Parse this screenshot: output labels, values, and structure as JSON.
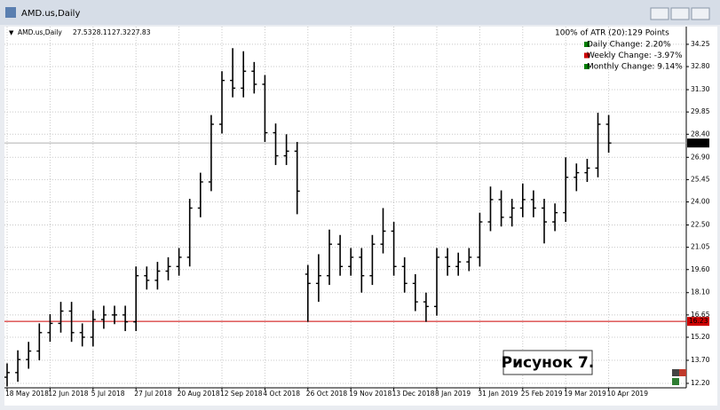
{
  "chart_data": {
    "type": "ohlc",
    "title": "AMD.us,Daily",
    "header_values": [
      27.53,
      28.11,
      27.32,
      27.83
    ],
    "categories": [
      "18 May 2018",
      null,
      null,
      null,
      "12 Jun 2018",
      null,
      null,
      null,
      "5 Jul 2018",
      null,
      null,
      null,
      "27 Jul 2018",
      null,
      null,
      null,
      "20 Aug 2018",
      null,
      null,
      null,
      "12 Sep 2018",
      null,
      null,
      null,
      "4 Oct 2018",
      null,
      null,
      null,
      "26 Oct 2018",
      null,
      null,
      null,
      "19 Nov 2018",
      null,
      null,
      null,
      "13 Dec 2018",
      null,
      null,
      null,
      "8 Jan 2019",
      null,
      null,
      null,
      "31 Jan 2019",
      null,
      null,
      null,
      "25 Feb 2019",
      null,
      null,
      null,
      "19 Mar 2019",
      null,
      null,
      null,
      "10 Apr 2019"
    ],
    "open": [
      12.6,
      12.9,
      13.75,
      14.3,
      15.5,
      16.1,
      16.9,
      15.5,
      15.2,
      16.35,
      16.65,
      16.65,
      16.2,
      19.2,
      18.9,
      19.5,
      19.8,
      20.4,
      23.6,
      25.3,
      29.05,
      31.9,
      31.4,
      32.5,
      31.65,
      28.5,
      27.0,
      27.3,
      19.3,
      18.7,
      19.2,
      21.25,
      19.8,
      20.4,
      19.2,
      21.25,
      22.1,
      19.8,
      18.7,
      17.5,
      17.2,
      20.4,
      19.8,
      20.1,
      20.4,
      22.7,
      24.15,
      23.0,
      23.6,
      24.15,
      23.6,
      22.7,
      23.3,
      25.6,
      25.9,
      26.2,
      29.05
    ],
    "high": [
      13.5,
      14.35,
      14.9,
      16.1,
      16.7,
      17.5,
      17.5,
      16.1,
      16.95,
      17.25,
      17.25,
      17.25,
      19.8,
      19.8,
      20.1,
      20.4,
      21.0,
      24.2,
      25.9,
      29.65,
      32.5,
      34.0,
      33.8,
      33.1,
      32.25,
      29.1,
      28.4,
      27.9,
      19.9,
      20.6,
      22.2,
      21.85,
      21.0,
      21.0,
      21.85,
      23.6,
      22.7,
      20.4,
      19.3,
      18.1,
      21.0,
      21.0,
      20.7,
      21.0,
      23.3,
      25.0,
      24.75,
      24.2,
      25.2,
      24.75,
      24.2,
      23.9,
      26.9,
      26.5,
      26.8,
      29.8,
      29.65
    ],
    "low": [
      12.0,
      12.3,
      13.15,
      13.7,
      14.9,
      15.5,
      14.9,
      14.6,
      14.6,
      15.75,
      16.05,
      15.6,
      15.6,
      18.3,
      18.3,
      18.9,
      19.2,
      19.8,
      23.0,
      24.7,
      28.45,
      30.8,
      30.8,
      31.05,
      27.9,
      26.4,
      26.4,
      23.2,
      16.2,
      17.5,
      18.6,
      19.2,
      19.2,
      18.1,
      18.6,
      20.65,
      19.2,
      18.1,
      16.9,
      16.2,
      16.6,
      19.2,
      19.2,
      19.5,
      19.8,
      22.1,
      22.4,
      22.4,
      23.0,
      23.0,
      21.3,
      22.1,
      22.7,
      24.7,
      25.3,
      25.6,
      27.2
    ],
    "close": [
      12.9,
      13.75,
      14.3,
      15.5,
      16.1,
      16.9,
      15.5,
      15.2,
      16.35,
      16.65,
      16.65,
      16.2,
      19.2,
      18.9,
      19.5,
      19.8,
      20.4,
      23.6,
      25.3,
      29.05,
      31.9,
      31.4,
      32.5,
      31.65,
      28.5,
      27.0,
      27.3,
      24.7,
      18.7,
      19.2,
      21.25,
      19.8,
      20.4,
      19.2,
      21.25,
      22.1,
      19.8,
      18.7,
      17.5,
      17.2,
      20.4,
      19.8,
      20.1,
      20.4,
      22.7,
      24.15,
      23.0,
      23.6,
      24.15,
      23.6,
      22.7,
      23.3,
      25.6,
      25.9,
      26.2,
      29.05,
      27.83
    ],
    "color": "#000000",
    "ylim": [
      11.91,
      35.4
    ],
    "yticks": [
      34.25,
      {
        "value": 32.8,
        "label": "32.80"
      },
      {
        "value": 31.3,
        "label": "31.30"
      },
      29.85,
      {
        "value": 28.4,
        "label": "28.40"
      },
      {
        "value": 26.9,
        "label": "26.90"
      },
      25.45,
      {
        "value": 24.0,
        "label": "24.00"
      },
      {
        "value": 22.5,
        "label": "22.50"
      },
      21.05,
      {
        "value": 19.6,
        "label": "19.60"
      },
      {
        "value": 18.1,
        "label": "18.10"
      },
      16.65,
      {
        "value": 15.2,
        "label": "15.20"
      },
      {
        "value": 13.7,
        "label": "13.70"
      },
      {
        "value": 12.2,
        "label": "12.20"
      }
    ],
    "grid": true,
    "current_price": 27.83,
    "level_line": {
      "value": 16.23,
      "color": "#cc0000"
    },
    "indicator": {
      "title": "100% of ATR (20):129 Points",
      "lines": [
        {
          "text": "Daily Change: 2.20%",
          "color": "#008000"
        },
        {
          "text": "Weekly Change: -3.97%",
          "color": "#cc0000"
        },
        {
          "text": "Monthly Change: 9.14%",
          "color": "#008000"
        }
      ]
    },
    "annotation": "Рисунок 7."
  }
}
